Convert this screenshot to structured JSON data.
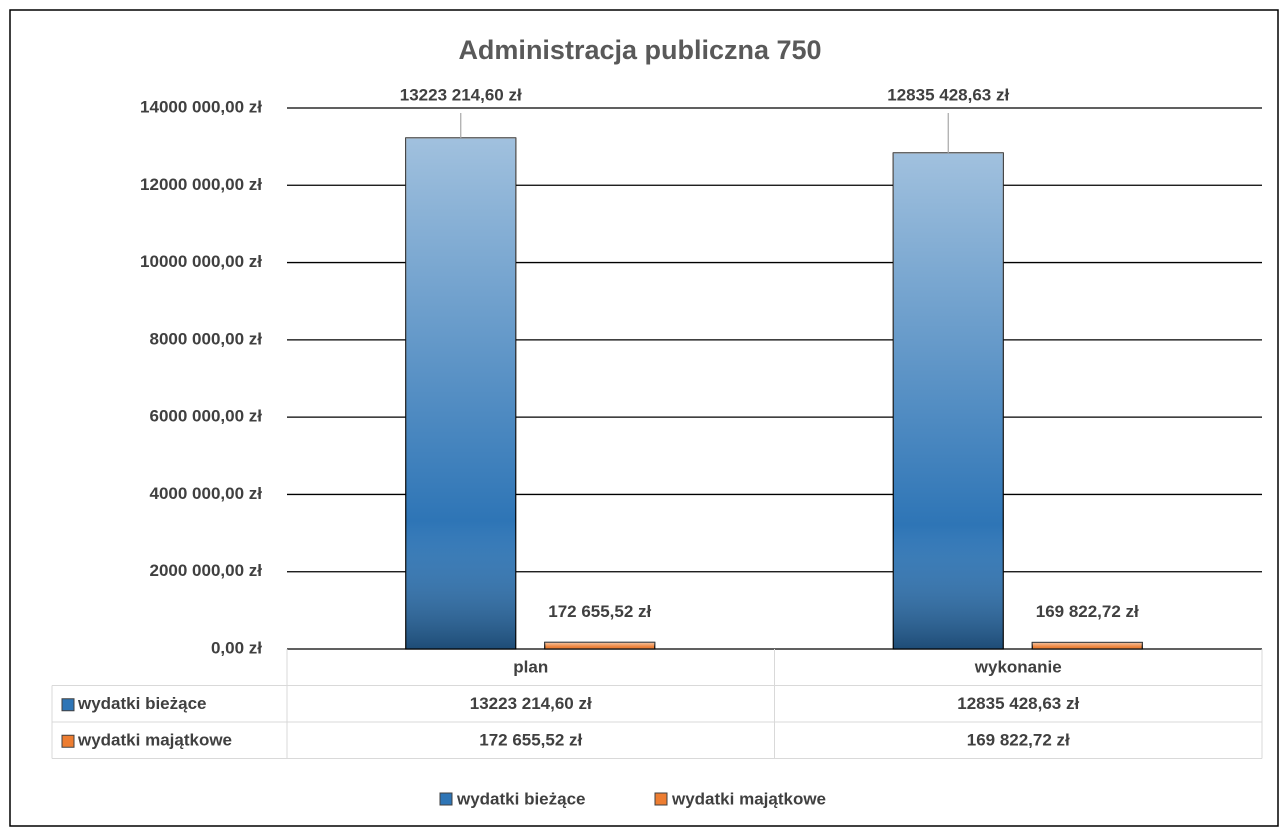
{
  "chart_data": {
    "type": "bar",
    "title": "Administracja publiczna 750",
    "categories": [
      "plan",
      "wykonanie"
    ],
    "series": [
      {
        "name": "wydatki bieżące",
        "color": "#2e75b6",
        "values": [
          13223214.6,
          12835428.63
        ],
        "value_labels": [
          "13223 214,60 zł",
          "12835 428,63 zł"
        ]
      },
      {
        "name": "wydatki majątkowe",
        "color": "#ed7d31",
        "values": [
          172655.52,
          169822.72
        ],
        "value_labels": [
          "172 655,52 zł",
          "169 822,72 zł"
        ]
      }
    ],
    "ylim": [
      0,
      14000000
    ],
    "yticks": [
      {
        "value": 0,
        "label": "0,00 zł"
      },
      {
        "value": 2000000,
        "label": "2000 000,00 zł"
      },
      {
        "value": 4000000,
        "label": "4000 000,00 zł"
      },
      {
        "value": 6000000,
        "label": "6000 000,00 zł"
      },
      {
        "value": 8000000,
        "label": "8000 000,00 zł"
      },
      {
        "value": 10000000,
        "label": "10000 000,00 zł"
      },
      {
        "value": 12000000,
        "label": "12000 000,00 zł"
      },
      {
        "value": 14000000,
        "label": "14000 000,00 zł"
      }
    ],
    "grid": true,
    "legend": "bottom",
    "data_table": true
  }
}
